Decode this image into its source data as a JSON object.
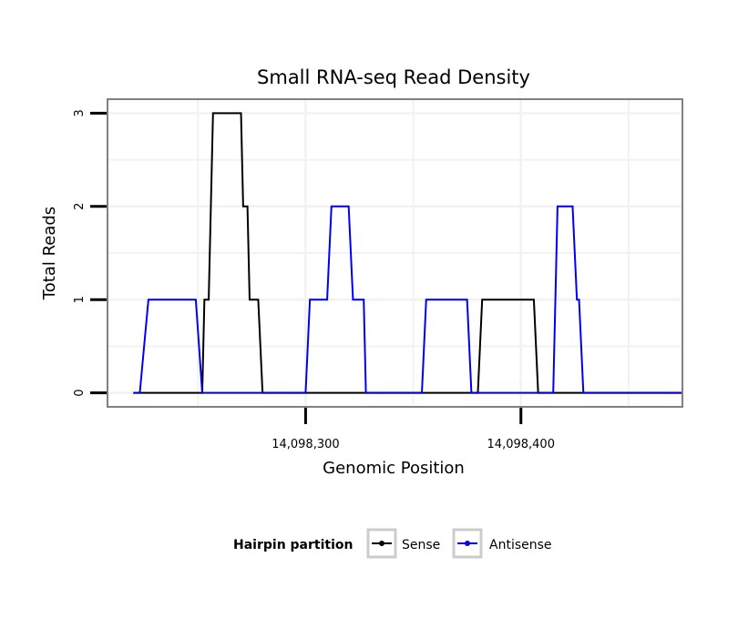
{
  "chart_data": {
    "type": "line",
    "title": "Small RNA-seq Read Density",
    "xlabel": "Genomic Position",
    "ylabel": "Total Reads",
    "xlim": [
      14098208,
      14098475
    ],
    "ylim": [
      -0.15,
      3.15
    ],
    "x_ticks": [
      {
        "value": 14098300,
        "label": "14,098,300"
      },
      {
        "value": 14098400,
        "label": "14,098,400"
      }
    ],
    "x_minor_grid": [
      14098250,
      14098350,
      14098450
    ],
    "y_ticks": [
      {
        "value": 0,
        "label": "0"
      },
      {
        "value": 1,
        "label": "1"
      },
      {
        "value": 2,
        "label": "2"
      },
      {
        "value": 3,
        "label": "3"
      }
    ],
    "y_minor_grid": [
      0.5,
      1.5,
      2.5
    ],
    "grid": true,
    "series": [
      {
        "name": "Sense",
        "color": "#000000",
        "x": [
          14098220,
          14098252,
          14098253,
          14098255,
          14098257,
          14098270,
          14098271,
          14098273,
          14098274,
          14098278,
          14098280,
          14098380,
          14098382,
          14098406,
          14098408,
          14098440,
          14098475
        ],
        "y": [
          0,
          0,
          1,
          1,
          3,
          3,
          2,
          2,
          1,
          1,
          0,
          0,
          1,
          1,
          0,
          0,
          0
        ]
      },
      {
        "name": "Antisense",
        "color": "#0000ee",
        "x": [
          14098220,
          14098223,
          14098227,
          14098249,
          14098252,
          14098300,
          14098302,
          14098310,
          14098312,
          14098320,
          14098322,
          14098327,
          14098328,
          14098330,
          14098354,
          14098356,
          14098375,
          14098377,
          14098415,
          14098417,
          14098424,
          14098426,
          14098427,
          14098429,
          14098475
        ],
        "y": [
          0,
          0,
          1,
          1,
          0,
          0,
          1,
          1,
          2,
          2,
          1,
          1,
          0,
          0,
          0,
          1,
          1,
          0,
          0,
          2,
          2,
          1,
          1,
          0,
          0
        ]
      }
    ],
    "legend": {
      "title": "Hairpin partition",
      "position": "bottom",
      "entries": [
        "Sense",
        "Antisense"
      ]
    }
  },
  "colors": {
    "panel_border": "#808080",
    "grid": "#f2f2f2",
    "sense": "#000000",
    "antisense": "#0000ee"
  }
}
